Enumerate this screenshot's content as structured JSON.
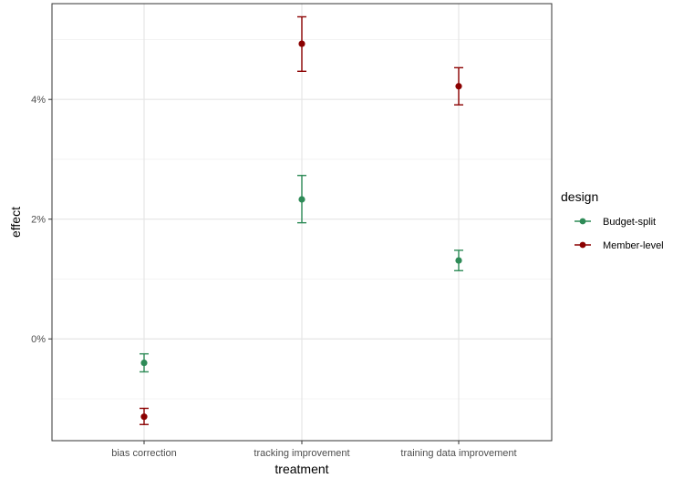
{
  "chart_data": {
    "type": "scatter",
    "subtype": "point-with-errorbars",
    "title": "",
    "xlabel": "treatment",
    "ylabel": "effect",
    "categories": [
      "bias correction",
      "tracking improvement",
      "training data improvement"
    ],
    "ylim": [
      -1.7,
      5.6
    ],
    "y_ticks": [
      0,
      2,
      4
    ],
    "y_tick_labels": [
      "0%",
      "2%",
      "4%"
    ],
    "y_unit": "%",
    "grid": true,
    "legend": {
      "title": "design",
      "position": "right"
    },
    "series": [
      {
        "name": "Budget-split",
        "color": "#2e8b57",
        "values": [
          -0.4,
          2.33,
          1.31
        ],
        "lower": [
          -0.55,
          1.94,
          1.14
        ],
        "upper": [
          -0.25,
          2.73,
          1.48
        ]
      },
      {
        "name": "Member-level",
        "color": "#8b0000",
        "values": [
          -1.3,
          4.93,
          4.22
        ],
        "lower": [
          -1.43,
          4.47,
          3.91
        ],
        "upper": [
          -1.16,
          5.38,
          4.53
        ]
      }
    ]
  }
}
